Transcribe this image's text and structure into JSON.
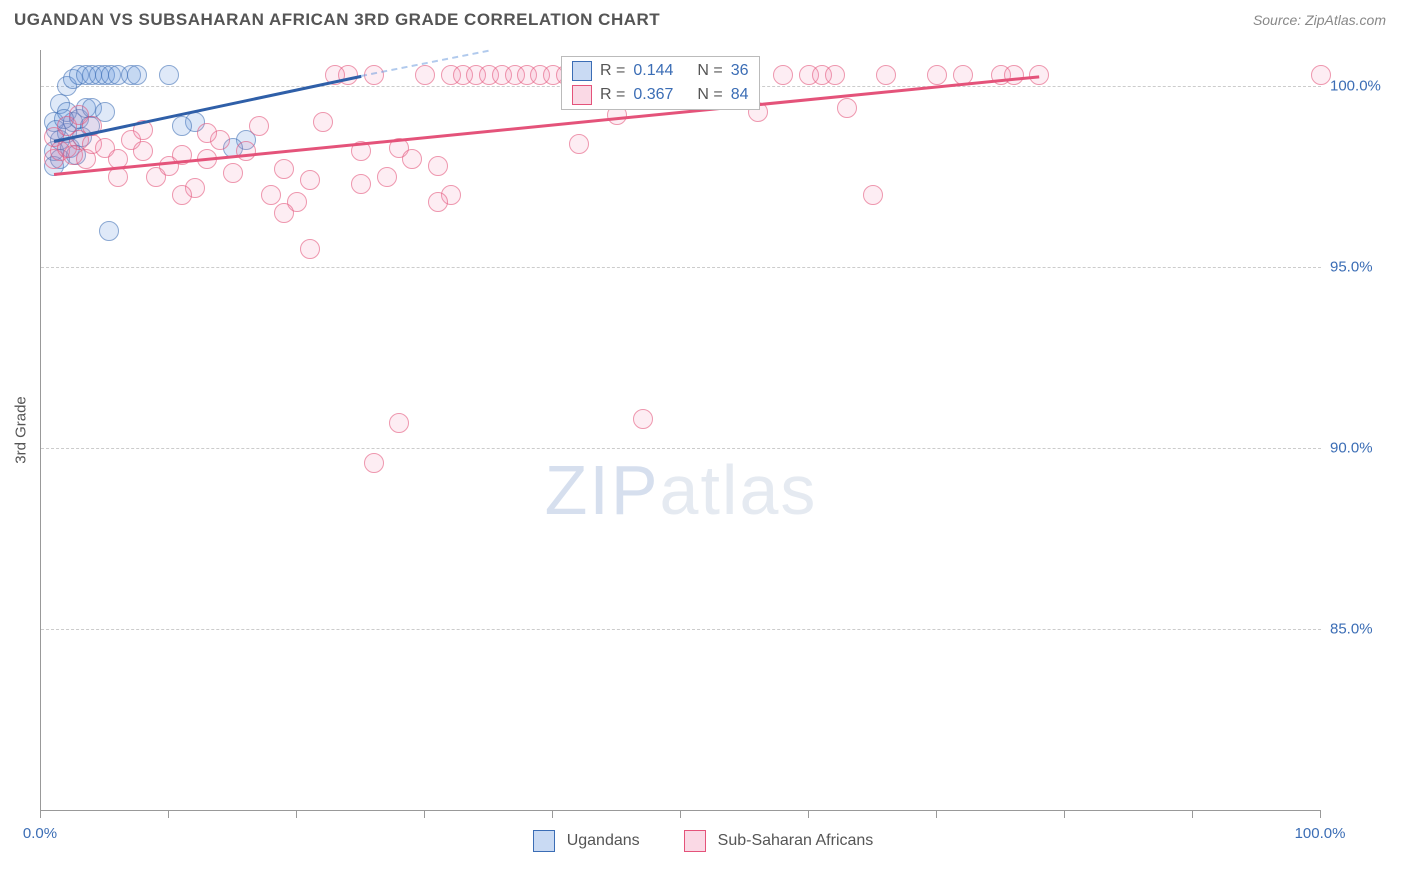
{
  "header": {
    "title": "UGANDAN VS SUBSAHARAN AFRICAN 3RD GRADE CORRELATION CHART",
    "source": "Source: ZipAtlas.com"
  },
  "chart": {
    "type": "scatter",
    "ylabel": "3rd Grade",
    "xlim": [
      0,
      100
    ],
    "ylim": [
      80,
      101
    ],
    "yticks": [
      85,
      90,
      95,
      100
    ],
    "ytick_labels": [
      "85.0%",
      "90.0%",
      "95.0%",
      "100.0%"
    ],
    "xticks": [
      0,
      10,
      20,
      30,
      40,
      50,
      60,
      70,
      80,
      90,
      100
    ],
    "xtick_labels": {
      "0": "0.0%",
      "100": "100.0%"
    },
    "background_color": "#ffffff",
    "grid_color": "#cccccc",
    "series": [
      {
        "name": "Ugandans",
        "color_fill": "rgba(100,150,220,0.35)",
        "color_stroke": "#3b6db5",
        "trend": {
          "x1": 1,
          "y1": 98.5,
          "x2": 25,
          "y2": 100.3,
          "dash_x2": 35
        },
        "stats": {
          "R": "0.144",
          "N": "36"
        },
        "points": [
          [
            1,
            99
          ],
          [
            1.5,
            99.5
          ],
          [
            2,
            100
          ],
          [
            2.5,
            100.2
          ],
          [
            3,
            100.3
          ],
          [
            3.5,
            100.3
          ],
          [
            4,
            100.3
          ],
          [
            4.5,
            100.3
          ],
          [
            5,
            100.3
          ],
          [
            5.5,
            100.3
          ],
          [
            6,
            100.3
          ],
          [
            7,
            100.3
          ],
          [
            1,
            98.2
          ],
          [
            1.5,
            98.5
          ],
          [
            2,
            98.7
          ],
          [
            2.5,
            99
          ],
          [
            2,
            99.3
          ],
          [
            3,
            99.1
          ],
          [
            3.5,
            99.4
          ],
          [
            4,
            99.4
          ],
          [
            1.2,
            98.8
          ],
          [
            1.8,
            99.1
          ],
          [
            7.5,
            100.3
          ],
          [
            10,
            100.3
          ],
          [
            1,
            97.8
          ],
          [
            2.3,
            98.3
          ],
          [
            3.2,
            98.6
          ],
          [
            1.5,
            98
          ],
          [
            5,
            99.3
          ],
          [
            12,
            99
          ],
          [
            5.3,
            96
          ],
          [
            16,
            98.5
          ],
          [
            11,
            98.9
          ],
          [
            15,
            98.3
          ],
          [
            3.8,
            98.9
          ],
          [
            2.7,
            98.1
          ]
        ]
      },
      {
        "name": "Sub-Saharan Africans",
        "color_fill": "rgba(240,130,170,0.25)",
        "color_stroke": "#e4537a",
        "trend": {
          "x1": 1,
          "y1": 97.6,
          "x2": 78,
          "y2": 100.3
        },
        "stats": {
          "R": "0.367",
          "N": "84"
        },
        "points": [
          [
            1,
            98
          ],
          [
            1.5,
            98.2
          ],
          [
            2,
            98.3
          ],
          [
            2.5,
            98.1
          ],
          [
            3,
            98.5
          ],
          [
            3.5,
            98
          ],
          [
            4,
            98.4
          ],
          [
            5,
            98.3
          ],
          [
            6,
            98
          ],
          [
            7,
            98.5
          ],
          [
            8,
            98.2
          ],
          [
            9,
            97.5
          ],
          [
            10,
            97.8
          ],
          [
            11,
            98.1
          ],
          [
            12,
            97.2
          ],
          [
            13,
            98
          ],
          [
            14,
            98.5
          ],
          [
            15,
            97.6
          ],
          [
            16,
            98.2
          ],
          [
            18,
            97
          ],
          [
            19,
            97.7
          ],
          [
            20,
            96.8
          ],
          [
            21,
            97.4
          ],
          [
            22,
            99
          ],
          [
            1,
            98.6
          ],
          [
            24,
            100.3
          ],
          [
            25,
            98.2
          ],
          [
            26,
            100.3
          ],
          [
            27,
            97.5
          ],
          [
            28,
            98.3
          ],
          [
            30,
            100.3
          ],
          [
            31,
            97.8
          ],
          [
            32,
            100.3
          ],
          [
            33,
            100.3
          ],
          [
            34,
            100.3
          ],
          [
            35,
            100.3
          ],
          [
            36,
            100.3
          ],
          [
            37,
            100.3
          ],
          [
            38,
            100.3
          ],
          [
            39,
            100.3
          ],
          [
            40,
            100.3
          ],
          [
            41,
            100.3
          ],
          [
            42,
            98.4
          ],
          [
            45,
            99.2
          ],
          [
            47,
            100.3
          ],
          [
            48,
            100.3
          ],
          [
            50,
            100.3
          ],
          [
            51,
            100.3
          ],
          [
            52,
            100.3
          ],
          [
            53,
            100.3
          ],
          [
            54,
            100.3
          ],
          [
            55,
            100.3
          ],
          [
            56,
            99.3
          ],
          [
            58,
            100.3
          ],
          [
            60,
            100.3
          ],
          [
            61,
            100.3
          ],
          [
            62,
            100.3
          ],
          [
            65,
            97
          ],
          [
            66,
            100.3
          ],
          [
            70,
            100.3
          ],
          [
            72,
            100.3
          ],
          [
            75,
            100.3
          ],
          [
            76,
            100.3
          ],
          [
            78,
            100.3
          ],
          [
            100,
            100.3
          ],
          [
            19,
            96.5
          ],
          [
            32,
            97
          ],
          [
            31,
            96.8
          ],
          [
            21,
            95.5
          ],
          [
            26,
            89.6
          ],
          [
            28,
            90.7
          ],
          [
            47,
            90.8
          ],
          [
            25,
            97.3
          ],
          [
            6,
            97.5
          ],
          [
            11,
            97
          ],
          [
            13,
            98.7
          ],
          [
            17,
            98.9
          ],
          [
            29,
            98
          ],
          [
            23,
            100.3
          ],
          [
            2,
            98.9
          ],
          [
            3,
            99.2
          ],
          [
            4,
            98.9
          ],
          [
            63,
            99.4
          ],
          [
            8,
            98.8
          ]
        ]
      }
    ],
    "legend": {
      "items": [
        "Ugandans",
        "Sub-Saharan Africans"
      ]
    },
    "watermark": {
      "part1": "ZIP",
      "part2": "atlas"
    }
  },
  "stats_box": {
    "rows": [
      {
        "swatch": "blue",
        "r_label": "R =",
        "r_val": "0.144",
        "n_label": "N =",
        "n_val": "36"
      },
      {
        "swatch": "pink",
        "r_label": "R =",
        "r_val": "0.367",
        "n_label": "N =",
        "n_val": "84"
      }
    ]
  }
}
